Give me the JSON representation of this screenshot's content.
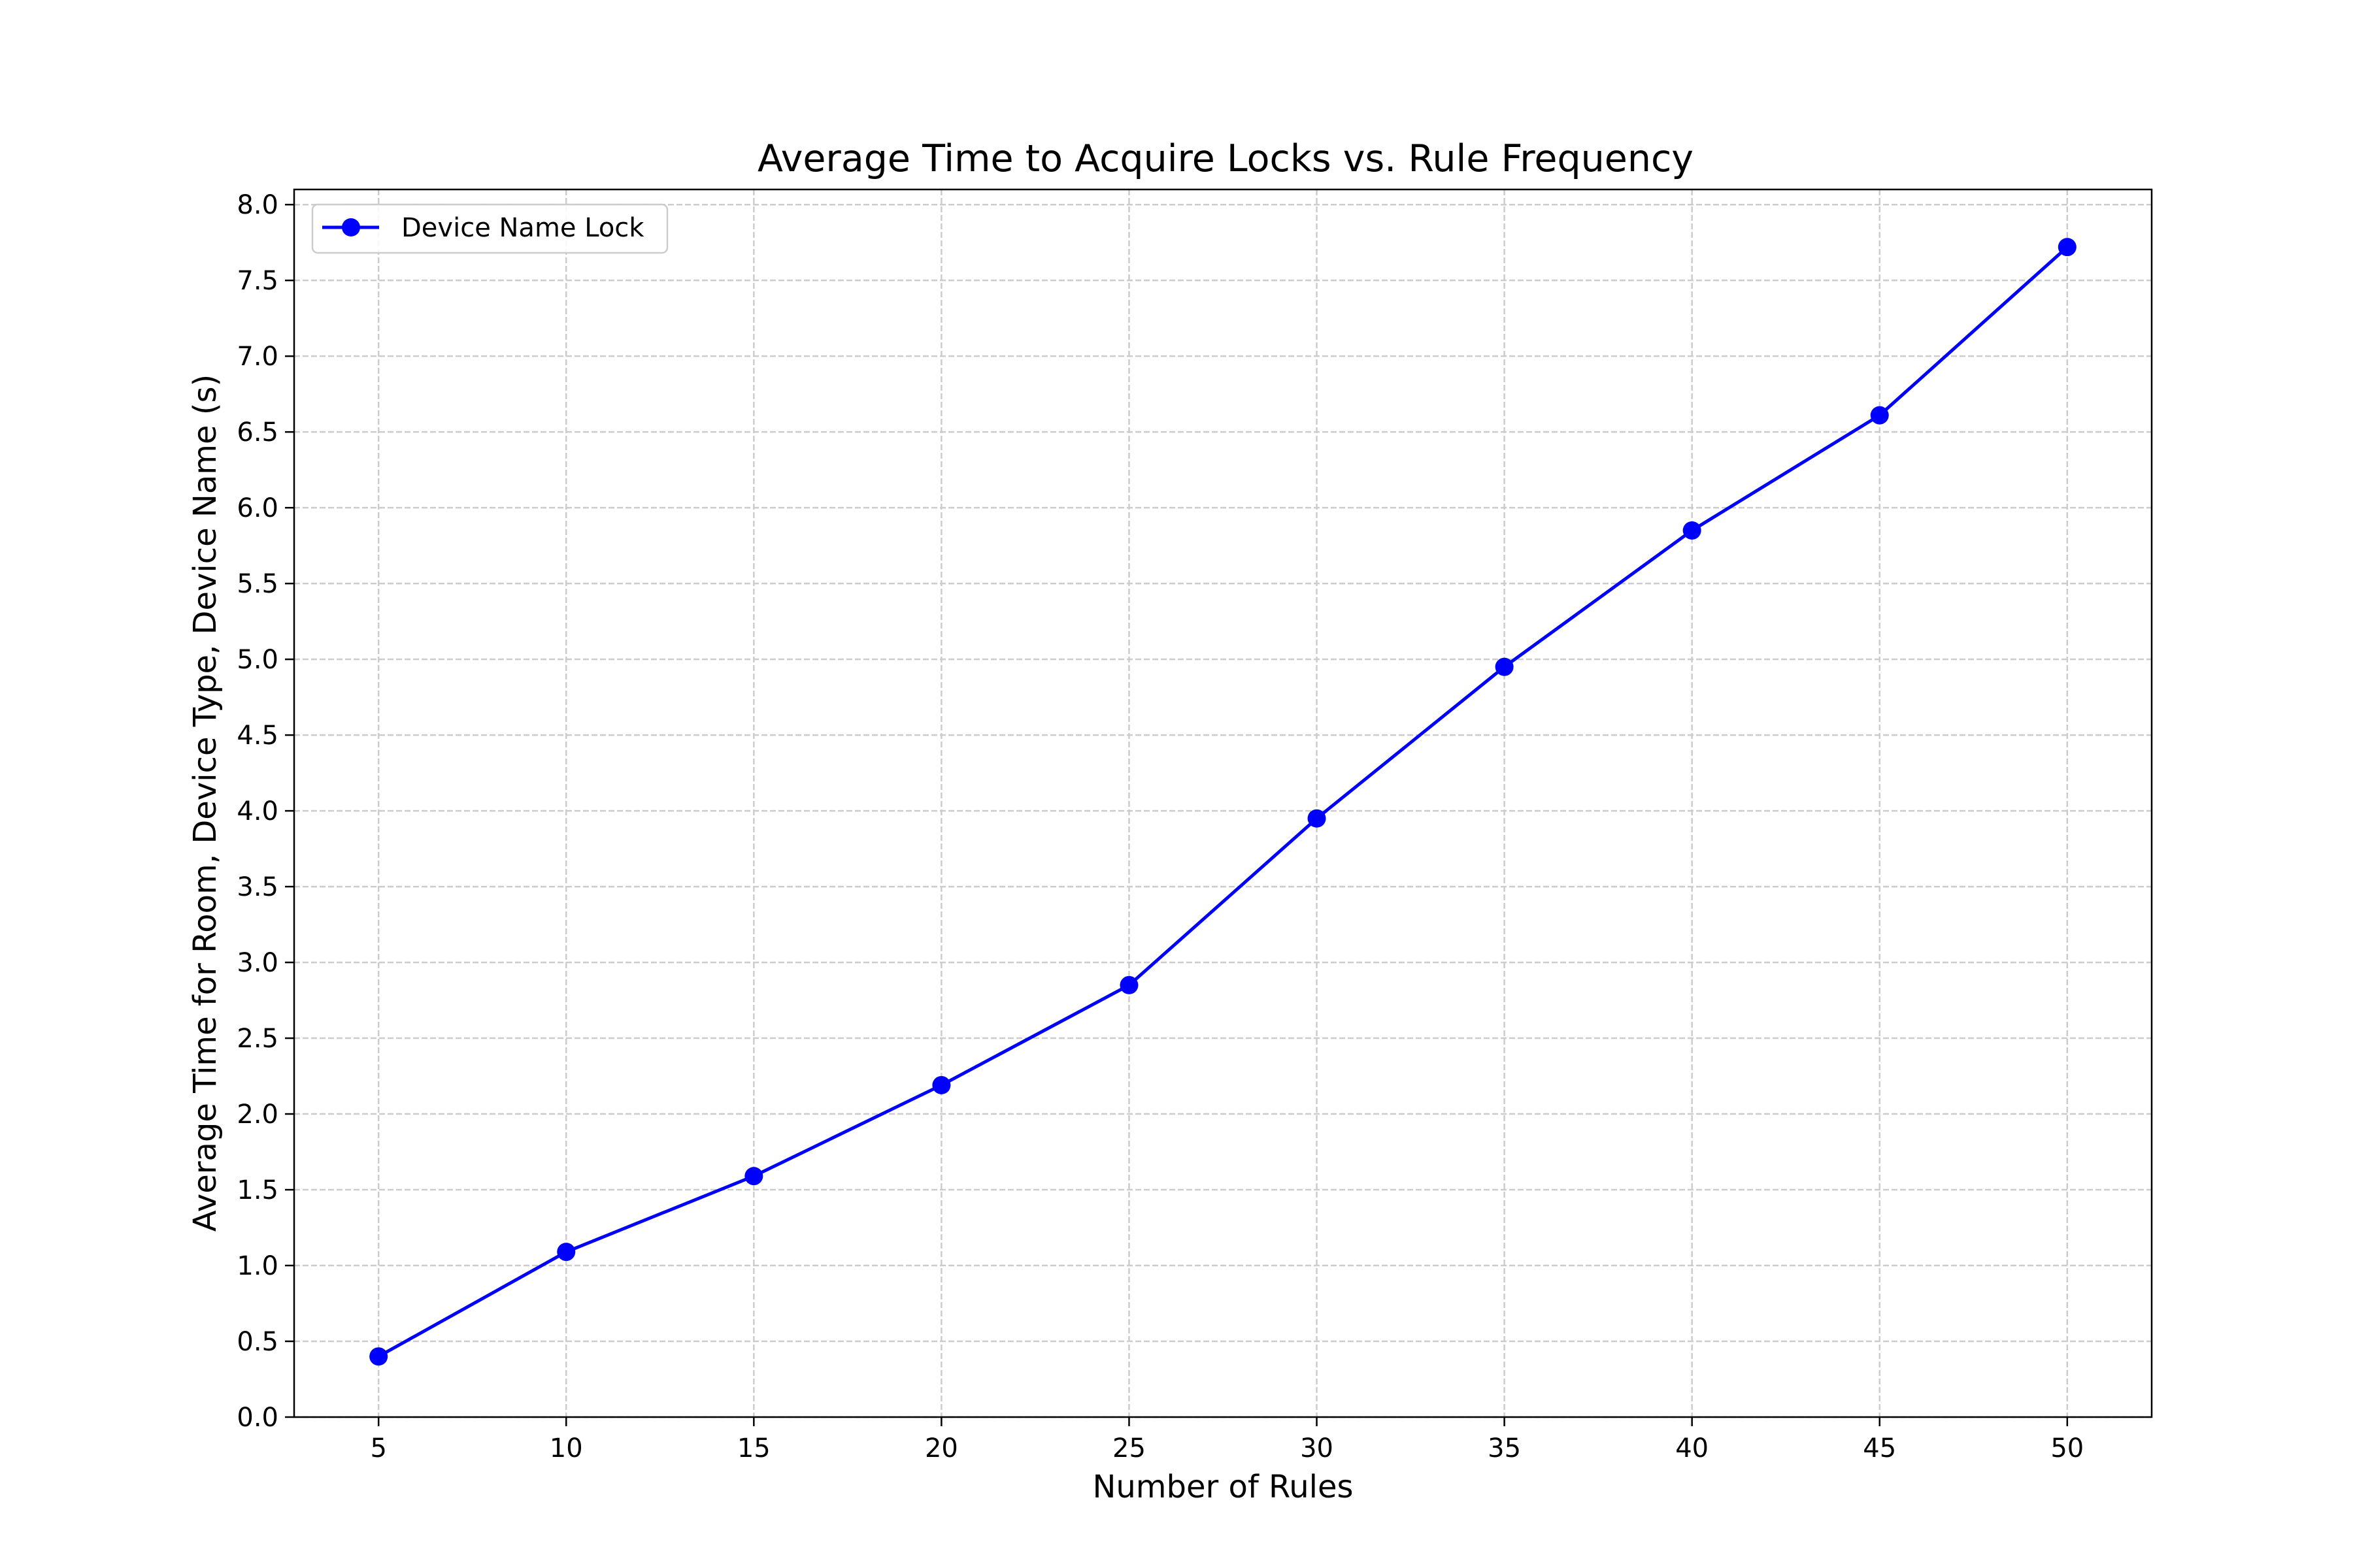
{
  "chart_data": {
    "type": "line",
    "title": "Average Time to Acquire Locks vs. Rule Frequency",
    "xlabel": "Number of Rules",
    "ylabel": "Average Time for Room, Device Type, Device Name (s)",
    "x": [
      5,
      10,
      15,
      20,
      25,
      30,
      35,
      40,
      45,
      50
    ],
    "series": [
      {
        "name": "Device Name Lock",
        "color": "#0000ff",
        "marker": "circle",
        "values": [
          0.4,
          1.09,
          1.59,
          2.19,
          2.85,
          3.95,
          4.95,
          5.85,
          6.61,
          7.72
        ]
      }
    ],
    "xlim": [
      2.75,
      52.25
    ],
    "ylim": [
      0,
      8.1
    ],
    "xticks": [
      5,
      10,
      15,
      20,
      25,
      30,
      35,
      40,
      45,
      50
    ],
    "yticks": [
      0,
      0.5,
      1.0,
      1.5,
      2.0,
      2.5,
      3.0,
      3.5,
      4.0,
      4.5,
      5.0,
      5.5,
      6.0,
      6.5,
      7.0,
      7.5,
      8.0
    ],
    "xtick_labels": [
      "5",
      "10",
      "15",
      "20",
      "25",
      "30",
      "35",
      "40",
      "45",
      "50"
    ],
    "ytick_labels": [
      "0.0",
      "0.5",
      "1.0",
      "1.5",
      "2.0",
      "2.5",
      "3.0",
      "3.5",
      "4.0",
      "4.5",
      "5.0",
      "5.5",
      "6.0",
      "6.5",
      "7.0",
      "7.5",
      "8.0"
    ],
    "grid": true,
    "grid_style": "dashed",
    "legend_position": "upper-left"
  }
}
